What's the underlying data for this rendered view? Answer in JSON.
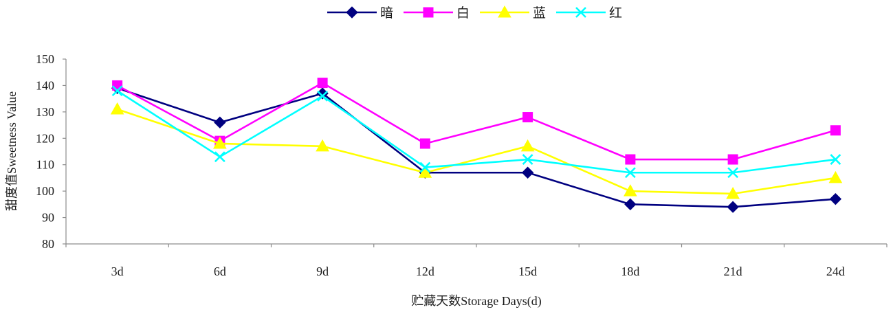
{
  "chart_data": {
    "type": "line",
    "title": "",
    "xlabel": "贮藏天数Storage Days(d)",
    "ylabel": "甜度值Sweetness Value",
    "categories": [
      "3d",
      "6d",
      "9d",
      "12d",
      "15d",
      "18d",
      "21d",
      "24d"
    ],
    "ylim": [
      80,
      150
    ],
    "yticks": [
      80,
      90,
      100,
      110,
      120,
      130,
      140,
      150
    ],
    "grid": false,
    "legend": "top-center",
    "series": [
      {
        "name": "暗",
        "color": "#000080",
        "marker": "diamond",
        "values": [
          139,
          126,
          137,
          107,
          107,
          95,
          94,
          97
        ]
      },
      {
        "name": "白",
        "color": "#FF00FF",
        "marker": "square",
        "values": [
          140,
          119,
          141,
          118,
          128,
          112,
          112,
          123
        ]
      },
      {
        "name": "蓝",
        "color": "#FFFF00",
        "marker": "triangle",
        "values": [
          131,
          118,
          117,
          107,
          117,
          100,
          99,
          105
        ]
      },
      {
        "name": "红",
        "color": "#00FFFF",
        "marker": "x",
        "values": [
          138,
          113,
          136,
          109,
          112,
          107,
          107,
          112
        ]
      }
    ]
  }
}
